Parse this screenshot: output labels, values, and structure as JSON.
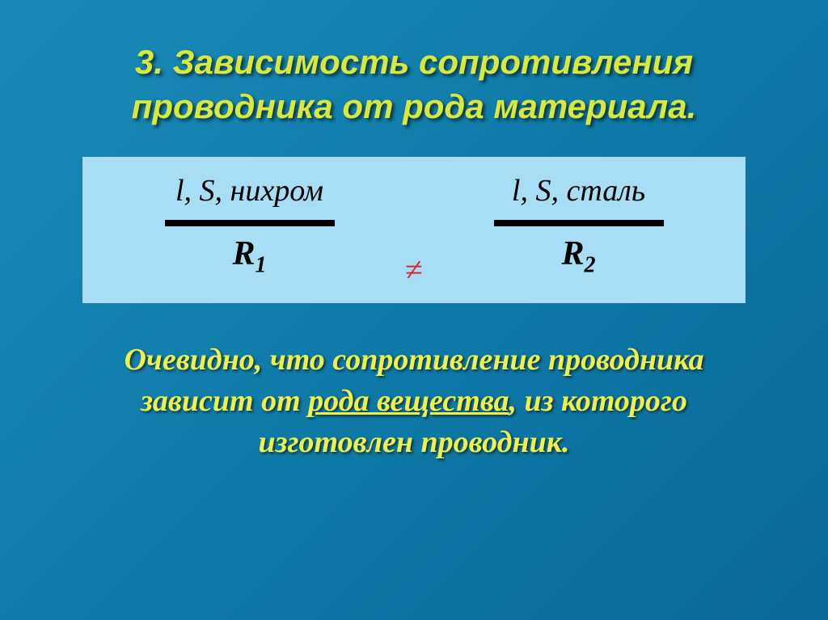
{
  "title": "3. Зависимость сопротивления проводника от рода материала.",
  "diagram": {
    "left": {
      "params": "l, S, нихром",
      "resistance": "R",
      "subscript": "1"
    },
    "right": {
      "params": "l, S, сталь",
      "resistance": "R",
      "subscript": "2"
    },
    "operator": "≠"
  },
  "conclusion": {
    "part1": "Очевидно, что сопротивление проводника зависит от ",
    "underlined": "рода вещества",
    "part2": ", из которого изготовлен проводник."
  },
  "colors": {
    "background_start": "#1a8bb8",
    "background_end": "#0a6a98",
    "title_color": "#d9e83a",
    "box_bg": "#a8ddf6",
    "neq_color": "#d42c2c",
    "conclusion_color": "#f0f04a"
  }
}
